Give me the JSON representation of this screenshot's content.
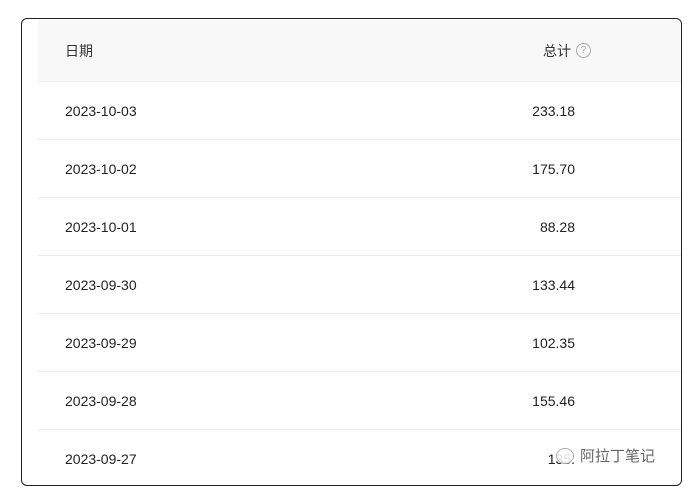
{
  "table": {
    "headers": {
      "date": "日期",
      "total": "总计"
    },
    "rows": [
      {
        "date": "2023-10-03",
        "total": "233.18"
      },
      {
        "date": "2023-10-02",
        "total": "175.70"
      },
      {
        "date": "2023-10-01",
        "total": "88.28"
      },
      {
        "date": "2023-09-30",
        "total": "133.44"
      },
      {
        "date": "2023-09-29",
        "total": "102.35"
      },
      {
        "date": "2023-09-28",
        "total": "155.46"
      },
      {
        "date": "2023-09-27",
        "total": "135."
      }
    ]
  },
  "watermark": {
    "text": "阿拉丁笔记",
    "icon": "wechat-icon"
  }
}
